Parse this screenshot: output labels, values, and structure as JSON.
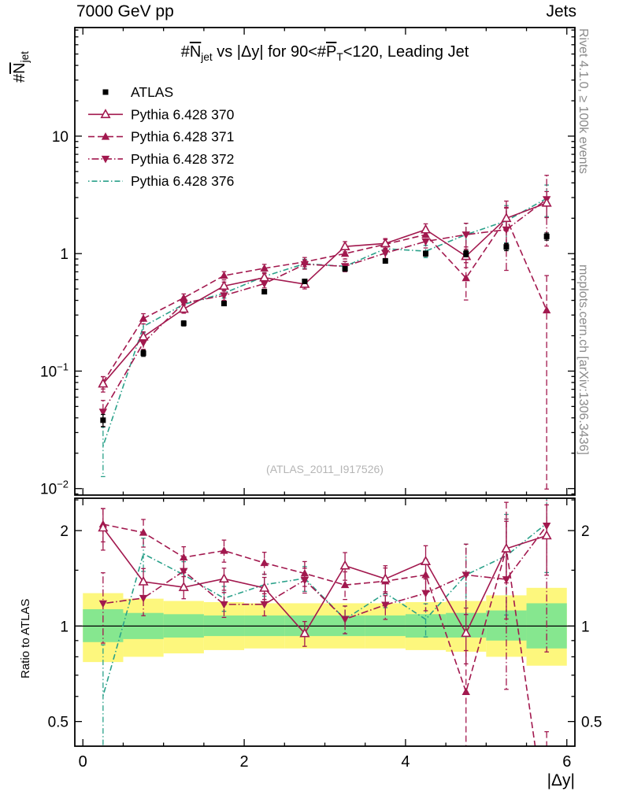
{
  "header": {
    "left": "7000 GeV pp",
    "right": "Jets"
  },
  "title": {
    "p1": "#",
    "n": "N",
    "n_sub": "jet",
    "p2": " vs |Δy| for 90<#",
    "p": "P",
    "p_sub": "T",
    "p3": "<120, Leading Jet"
  },
  "ylabel": {
    "p1": "#",
    "n": "N",
    "sub": "jet"
  },
  "xlabel": "|Δy|",
  "watermark": "(ATLAS_2011_I917526)",
  "side_labels": {
    "rivet": "Rivet 4.1.0, ≥ 100k events",
    "mcplots": "mcplots.cern.ch [arXiv:1306.3436]",
    "ratio": "Ratio to ATLAS"
  },
  "chart_data": {
    "type": "line",
    "x_label": "|Δy|",
    "x_range": [
      -0.1,
      6.1
    ],
    "x_major_ticks": [
      0,
      2,
      4,
      6
    ],
    "x_minor_step": 0.5,
    "x": [
      0.25,
      0.75,
      1.25,
      1.75,
      2.25,
      2.75,
      3.25,
      3.75,
      4.25,
      4.75,
      5.25,
      5.75
    ],
    "top_panel": {
      "y_scale": "log",
      "y_range": [
        0.0088,
        84
      ],
      "y_major_ticks": [
        0.01,
        0.1,
        1,
        10
      ]
    },
    "ratio_panel": {
      "y_scale": "log",
      "y_range": [
        0.418,
        2.53
      ],
      "y_major_ticks": [
        0.5,
        1,
        2
      ],
      "y_minor_ticks": [
        0.6,
        0.7,
        0.8,
        0.9,
        1.5,
        2.5
      ]
    },
    "series": [
      {
        "name": "ATLAS",
        "color": "#000000",
        "marker": "square",
        "line": "none",
        "values": [
          0.0382,
          0.142,
          0.255,
          0.376,
          0.474,
          0.58,
          0.742,
          0.866,
          1.0,
          1.0,
          1.14,
          1.4
        ],
        "err_frac": [
          0.12,
          0.06,
          0.05,
          0.04,
          0.04,
          0.04,
          0.04,
          0.04,
          0.05,
          0.06,
          0.07,
          0.07
        ]
      },
      {
        "name": "Pythia 6.428 370",
        "color": "#a2184e",
        "marker": "triangle-open",
        "line": "solid",
        "values": [
          0.078,
          0.196,
          0.338,
          0.53,
          0.625,
          0.55,
          1.15,
          1.22,
          1.6,
          0.95,
          2.0,
          2.7
        ],
        "err_frac": [
          0.15,
          0.1,
          0.08,
          0.08,
          0.08,
          0.09,
          0.1,
          0.1,
          0.12,
          0.2,
          0.22,
          0.25
        ]
      },
      {
        "name": "Pythia 6.428 371",
        "color": "#a2184e",
        "marker": "triangle-filled",
        "line": "dashed",
        "values": [
          0.08,
          0.28,
          0.42,
          0.65,
          0.75,
          0.85,
          1.0,
          1.2,
          1.45,
          0.62,
          2.0,
          0.33
        ],
        "err_frac": [
          0.12,
          0.1,
          0.08,
          0.08,
          0.08,
          0.09,
          0.1,
          0.1,
          0.12,
          0.35,
          0.4,
          0.97
        ]
      },
      {
        "name": "Pythia 6.428 372",
        "color": "#a2184e",
        "marker": "triangle-down-filled",
        "line": "dashdot",
        "values": [
          0.045,
          0.174,
          0.38,
          0.44,
          0.555,
          0.81,
          0.78,
          1.01,
          1.27,
          1.45,
          1.6,
          2.9
        ],
        "err_frac": [
          0.25,
          0.12,
          0.1,
          0.09,
          0.08,
          0.09,
          0.1,
          0.1,
          0.12,
          0.25,
          0.55,
          0.6
        ]
      },
      {
        "name": "Pythia 6.428 376",
        "color": "#2aa18a",
        "marker": "none",
        "line": "dashdotdense",
        "values": [
          0.023,
          0.24,
          0.37,
          0.46,
          0.64,
          0.82,
          0.78,
          1.1,
          1.05,
          1.45,
          1.9,
          2.95
        ],
        "err_frac": [
          0.45,
          0.12,
          0.1,
          0.09,
          0.08,
          0.09,
          0.1,
          0.1,
          0.12,
          0.25,
          0.35,
          0.3
        ]
      }
    ],
    "ratio": {
      "reference": "ATLAS",
      "bands": {
        "yellow_color": "#fdf77d",
        "green_color": "#86e78f",
        "bin_edges": [
          0,
          0.5,
          1.0,
          1.5,
          2.0,
          2.5,
          3.0,
          3.5,
          4.0,
          4.5,
          5.0,
          5.5,
          6.0
        ],
        "yellow": [
          [
            0.77,
            1.27
          ],
          [
            0.8,
            1.22
          ],
          [
            0.82,
            1.2
          ],
          [
            0.84,
            1.19
          ],
          [
            0.85,
            1.18
          ],
          [
            0.85,
            1.18
          ],
          [
            0.85,
            1.18
          ],
          [
            0.85,
            1.18
          ],
          [
            0.84,
            1.19
          ],
          [
            0.83,
            1.2
          ],
          [
            0.8,
            1.25
          ],
          [
            0.75,
            1.32
          ]
        ],
        "green": [
          [
            0.89,
            1.13
          ],
          [
            0.91,
            1.1
          ],
          [
            0.92,
            1.09
          ],
          [
            0.93,
            1.08
          ],
          [
            0.93,
            1.08
          ],
          [
            0.93,
            1.08
          ],
          [
            0.93,
            1.08
          ],
          [
            0.93,
            1.08
          ],
          [
            0.92,
            1.09
          ],
          [
            0.92,
            1.1
          ],
          [
            0.9,
            1.12
          ],
          [
            0.85,
            1.18
          ]
        ]
      }
    }
  }
}
